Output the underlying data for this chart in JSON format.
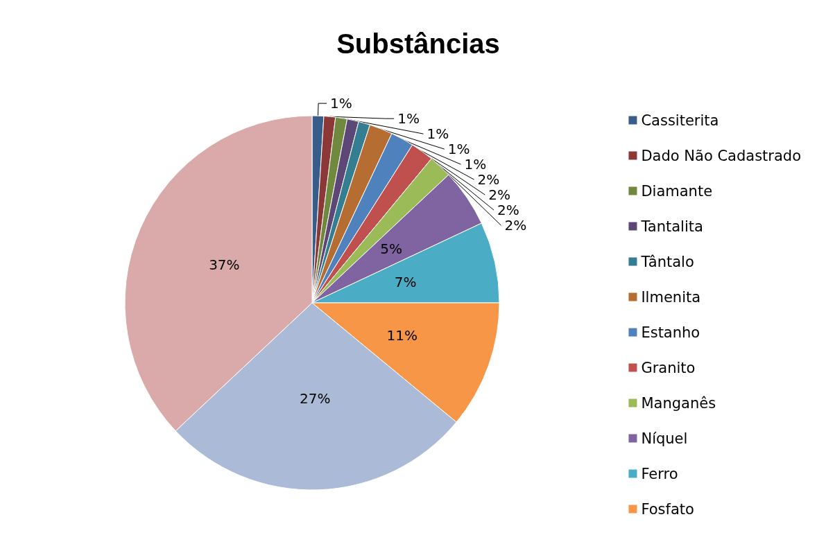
{
  "chart_data": {
    "type": "pie",
    "title": "Substâncias",
    "categories": [
      "Cassiterita",
      "Dado Não Cadastrado",
      "Diamante",
      "Tantalita",
      "Tântalo",
      "Ilmenita",
      "Estanho",
      "Granito",
      "Manganês",
      "Níquel",
      "Ferro",
      "Fosfato",
      null,
      null
    ],
    "values": [
      1,
      1,
      1,
      1,
      1,
      2,
      2,
      2,
      2,
      5,
      7,
      11,
      27,
      37
    ],
    "colors": [
      "#385d8a",
      "#8c3836",
      "#71893f",
      "#5c4776",
      "#357d91",
      "#b66d31",
      "#4f81bd",
      "#c0504d",
      "#9bbb59",
      "#8064a2",
      "#4bacc6",
      "#f79646",
      "#aabad7",
      "#d9aaa9"
    ],
    "value_labels": [
      "1%",
      "1%",
      "1%",
      "1%",
      "1%",
      "2%",
      "2%",
      "2%",
      "2%",
      "5%",
      "7%",
      "11%",
      "27%",
      "37%"
    ],
    "legend": "right"
  }
}
